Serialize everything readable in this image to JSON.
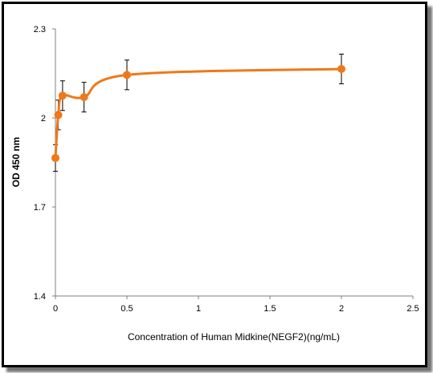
{
  "chart_data": {
    "type": "line",
    "title": "",
    "xlabel": "Concentration of Human Midkine(NEGF2)(ng/mL)",
    "ylabel": "OD 450 nm",
    "xlim": [
      0,
      2.5
    ],
    "ylim": [
      1.4,
      2.3
    ],
    "x_ticks": [
      "0",
      "0.5",
      "1",
      "1.5",
      "2",
      "2.5"
    ],
    "y_ticks": [
      "1.4",
      "1.7",
      "2",
      "2.3"
    ],
    "grid": false,
    "legend": "none",
    "series": [
      {
        "color": "#F07818",
        "x": [
          0,
          0.02,
          0.05,
          0.2,
          0.5,
          2
        ],
        "y": [
          1.865,
          2.01,
          2.075,
          2.07,
          2.145,
          2.165
        ],
        "error": [
          0.045,
          0.05,
          0.05,
          0.05,
          0.05,
          0.05
        ]
      }
    ]
  }
}
